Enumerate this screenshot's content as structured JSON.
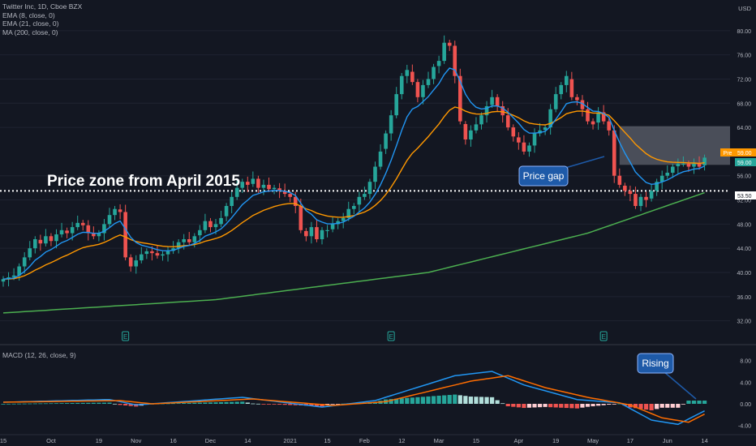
{
  "header": {
    "symbol_line": "Twitter Inc, 1D, Cboe BZX",
    "currency": "USD"
  },
  "indicators": [
    {
      "label": "EMA (8, close, 0)",
      "color": "#2196f3"
    },
    {
      "label": "EMA (21, close, 0)",
      "color": "#ff9800"
    },
    {
      "label": "MA (200, close, 0)",
      "color": "#4caf50"
    }
  ],
  "macd": {
    "label": "MACD (12, 26, close, 9)"
  },
  "annotations": {
    "price_zone": "Price zone from April 2015",
    "price_gap": "Price gap",
    "rising": "Rising"
  },
  "badges": {
    "pre_label": "Pre",
    "pre_value": "59.00",
    "last_value": "59.00",
    "level_value": "53.50"
  },
  "colors": {
    "background": "#131722",
    "up": "#26a69a",
    "down": "#ef5350",
    "ema8": "#2196f3",
    "ema21": "#ff9800",
    "ma200": "#4caf50",
    "callout": "#1e5aa8",
    "gap_box": "#787b86"
  },
  "chart_data": {
    "type": "candlestick",
    "title": "Twitter Inc, 1D, Cboe BZX",
    "ylim": [
      29,
      84
    ],
    "y_ticks": [
      32.0,
      36.0,
      40.0,
      44.0,
      48.0,
      52.0,
      56.0,
      64.0,
      68.0,
      72.0,
      76.0,
      80.0
    ],
    "x_ticks": [
      "15",
      "Oct",
      "19",
      "Nov",
      "16",
      "Dec",
      "14",
      "2021",
      "15",
      "Feb",
      "12",
      "Mar",
      "15",
      "Apr",
      "19",
      "May",
      "17",
      "Jun",
      "14"
    ],
    "closes": [
      38.9,
      39.2,
      39.5,
      41.0,
      42.5,
      44.0,
      45.5,
      44.8,
      46.0,
      45.2,
      46.3,
      47.0,
      46.5,
      47.5,
      48.2,
      47.8,
      46.5,
      46.0,
      46.5,
      48.0,
      49.5,
      50.5,
      50.0,
      42.5,
      41.0,
      42.0,
      43.0,
      43.5,
      43.2,
      42.8,
      43.0,
      43.5,
      44.0,
      45.0,
      45.5,
      45.0,
      46.0,
      47.0,
      48.5,
      47.5,
      48.0,
      49.0,
      51.0,
      52.5,
      54.0,
      55.0,
      54.5,
      55.5,
      54.0,
      54.5,
      53.8,
      54.0,
      53.5,
      53.0,
      52.5,
      51.0,
      47.0,
      46.0,
      47.5,
      45.5,
      47.0,
      47.0,
      48.0,
      48.5,
      49.0,
      50.5,
      51.0,
      52.5,
      53.0,
      55.0,
      57.5,
      60.0,
      63.0,
      66.0,
      69.5,
      72.5,
      73.5,
      71.5,
      69.0,
      71.0,
      72.0,
      74.0,
      75.0,
      78.0,
      77.5,
      72.5,
      65.0,
      62.0,
      63.5,
      64.5,
      66.0,
      67.5,
      69.0,
      67.5,
      66.0,
      64.0,
      62.5,
      61.5,
      60.0,
      61.0,
      63.0,
      63.5,
      64.0,
      67.0,
      69.5,
      71.0,
      72.5,
      69.0,
      68.5,
      67.0,
      65.0,
      64.5,
      66.5,
      65.0,
      63.5,
      56.0,
      54.5,
      53.5,
      53.0,
      51.0,
      52.5,
      52.0,
      53.5,
      55.0,
      56.0,
      56.5,
      57.5,
      58.0,
      58.0,
      57.5,
      58.0,
      57.5,
      59.0
    ],
    "ema21_approx": "smoothed from closes",
    "ma200_anchor": [
      [
        0,
        33.3
      ],
      [
        40,
        35.5
      ],
      [
        80,
        40.0
      ],
      [
        110,
        46.5
      ],
      [
        133,
        53.5
      ]
    ],
    "level_line": 53.5,
    "gap_zone": {
      "top": 64.2,
      "bottom": 57.8,
      "start_index": 116
    },
    "macd_ylim": [
      -4.8,
      10.2
    ],
    "macd_ticks": [
      8.0,
      4.0,
      0.0,
      -4.0
    ],
    "macd_series": {
      "macd_anchor": [
        [
          0,
          0.3
        ],
        [
          20,
          0.8
        ],
        [
          25,
          -0.2
        ],
        [
          45,
          1.2
        ],
        [
          60,
          -0.6
        ],
        [
          70,
          0.6
        ],
        [
          85,
          5.2
        ],
        [
          92,
          6.0
        ],
        [
          98,
          3.5
        ],
        [
          108,
          0.8
        ],
        [
          116,
          0.2
        ],
        [
          122,
          -3.0
        ],
        [
          127,
          -3.8
        ],
        [
          133,
          -0.8
        ]
      ],
      "signal_anchor": [
        [
          0,
          0.3
        ],
        [
          22,
          0.6
        ],
        [
          28,
          0.0
        ],
        [
          47,
          0.9
        ],
        [
          62,
          -0.3
        ],
        [
          72,
          0.4
        ],
        [
          88,
          4.2
        ],
        [
          95,
          5.2
        ],
        [
          102,
          3.0
        ],
        [
          110,
          1.2
        ],
        [
          118,
          -0.2
        ],
        [
          124,
          -2.6
        ],
        [
          129,
          -3.4
        ],
        [
          133,
          -1.4
        ]
      ]
    }
  }
}
